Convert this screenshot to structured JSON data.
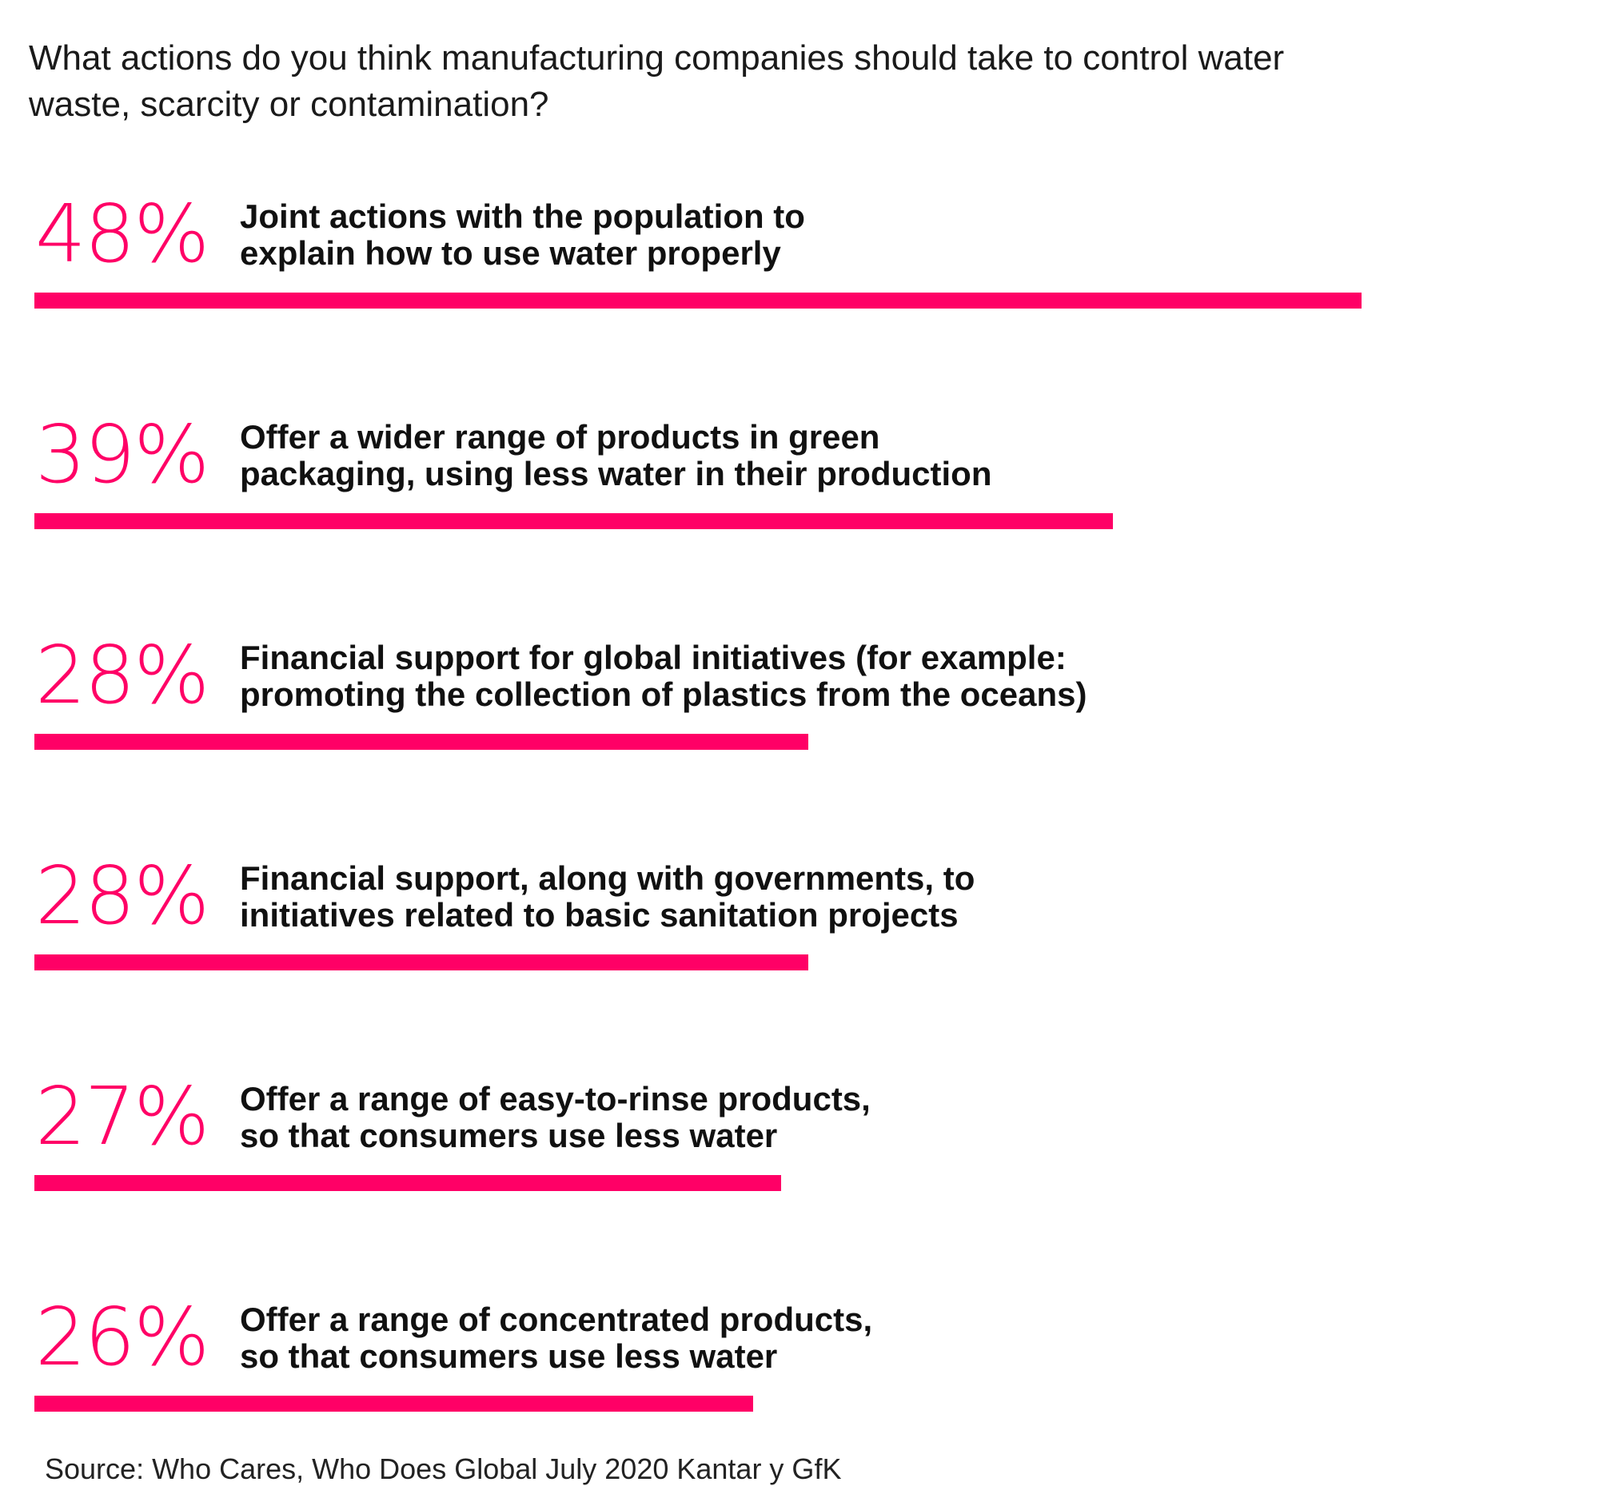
{
  "title": "What actions do you think manufacturing companies should take to control water waste, scarcity or contamination?",
  "source": "Source: Who Cares, Who Does Global July 2020 Kantar y GfK",
  "colors": {
    "accent": "#ff0066",
    "text": "#111111",
    "background": "#ffffff"
  },
  "chart_data": {
    "type": "bar",
    "orientation": "horizontal",
    "title": "What actions do you think manufacturing companies should take to control water waste, scarcity or contamination?",
    "categories": [
      "Joint actions with the population to explain how to use water properly",
      "Offer a wider range of products in green packaging, using less water in their production",
      "Financial support for global initiatives (for example: promoting the collection of plastics from the oceans)",
      "Financial support, along with governments, to initiatives related to basic sanitation projects",
      "Offer a range of easy-to-rinse products, so that consumers use less water",
      "Offer a range of concentrated products, so that consumers use less water"
    ],
    "values": [
      48,
      39,
      28,
      28,
      27,
      26
    ],
    "value_labels": [
      "48%",
      "39%",
      "28%",
      "28%",
      "27%",
      "26%"
    ],
    "label_lines": [
      [
        "Joint actions with the population to",
        "explain how to use water properly"
      ],
      [
        "Offer a wider range of products in green",
        "packaging, using less water in their production"
      ],
      [
        "Financial support for global initiatives (for example:",
        "promoting the collection of plastics from the oceans)"
      ],
      [
        "Financial support, along with governments, to",
        "initiatives related to basic sanitation projects"
      ],
      [
        "Offer a range of easy-to-rinse products,",
        "so that consumers use less water"
      ],
      [
        "Offer a range of concentrated products,",
        "so that consumers use less water"
      ]
    ],
    "unit": "%",
    "grid": false,
    "legend": "none"
  }
}
